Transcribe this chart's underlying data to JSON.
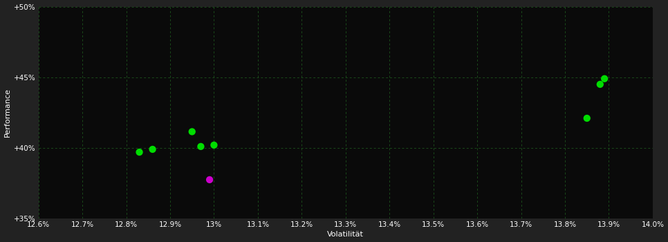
{
  "background_color": "#222222",
  "plot_bg_color": "#0a0a0a",
  "grid_color": "#1a4a1a",
  "text_color": "#ffffff",
  "xlabel": "Volatilität",
  "ylabel": "Performance",
  "xlim": [
    0.126,
    0.14
  ],
  "ylim": [
    0.35,
    0.5
  ],
  "xticks": [
    0.126,
    0.127,
    0.128,
    0.129,
    0.13,
    0.131,
    0.132,
    0.133,
    0.134,
    0.135,
    0.136,
    0.137,
    0.138,
    0.139,
    0.14
  ],
  "yticks": [
    0.35,
    0.4,
    0.45,
    0.5
  ],
  "points_green": [
    [
      0.1283,
      0.397
    ],
    [
      0.1286,
      0.399
    ],
    [
      0.1295,
      0.4115
    ],
    [
      0.1297,
      0.401
    ],
    [
      0.13,
      0.402
    ],
    [
      0.1385,
      0.421
    ],
    [
      0.1388,
      0.445
    ],
    [
      0.1389,
      0.449
    ]
  ],
  "points_magenta": [
    [
      0.1299,
      0.3775
    ]
  ],
  "green_color": "#00dd00",
  "magenta_color": "#cc00cc",
  "marker_size": 55
}
